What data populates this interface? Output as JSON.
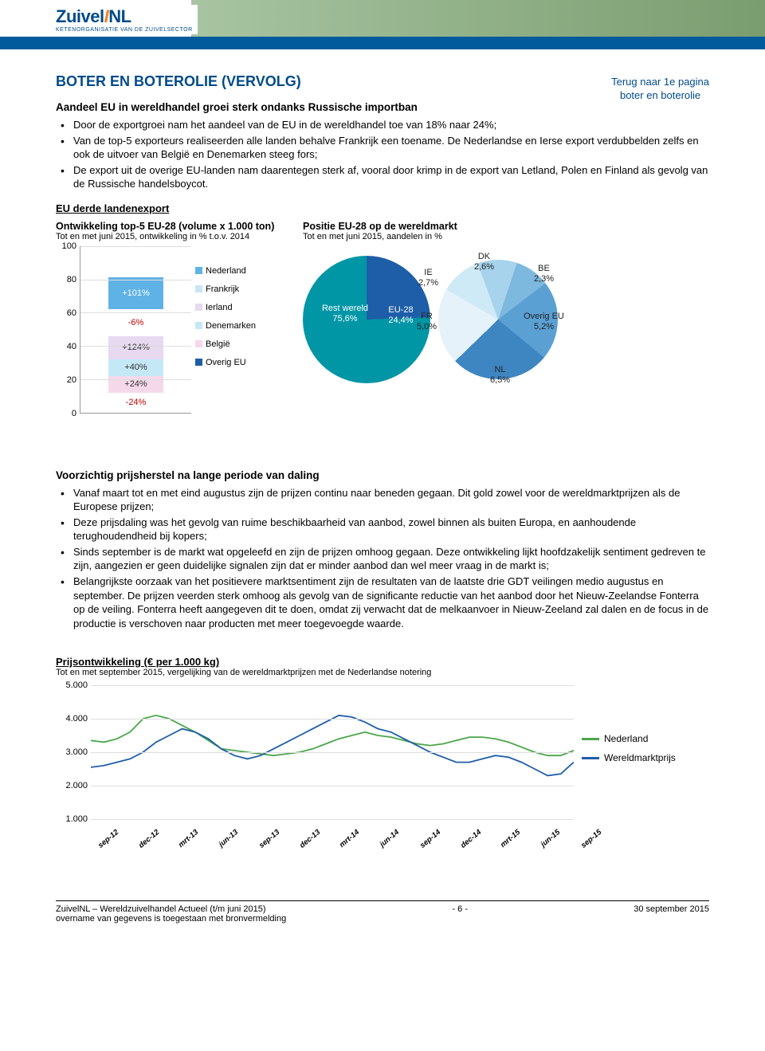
{
  "logo": {
    "main_pre": "Zuivel",
    "main_post": "NL",
    "sub": "KETENORGANISATIE VAN DE ZUIVELSECTOR"
  },
  "title": "BOTER EN BOTEROLIE (VERVOLG)",
  "top_link_line1": "Terug naar 1e pagina",
  "top_link_line2": "boter en boterolie",
  "subhead1": "Aandeel EU in wereldhandel groei sterk ondanks Russische importban",
  "bullets1": [
    "Door de exportgroei nam het aandeel van de EU in de wereldhandel toe van 18% naar 24%;",
    "Van de top-5 exporteurs realiseerden alle landen behalve Frankrijk een toename. De Nederlandse en Ierse export verdubbelden zelfs en ook de uitvoer van België en Denemarken steeg fors;",
    "De export uit de overige EU-landen nam daarentegen sterk af, vooral door krimp in de export van Letland, Polen en Finland als gevolg van de Russische handelsboycot."
  ],
  "subhead2": "EU derde landenexport",
  "bar_chart": {
    "title": "Ontwikkeling top-5 EU-28 (volume x 1.000 ton)",
    "sub": "Tot en met juni 2015, ontwikkeling in % t.o.v. 2014",
    "ymax": 100,
    "ytick_step": 20,
    "segments": [
      {
        "label": "+101%",
        "value": 19,
        "color": "#5fb2e6",
        "name": "Nederland"
      },
      {
        "label": "-6%",
        "value": 16,
        "color": "#c9e4f5",
        "name": "Frankrijk",
        "negcolor": true
      },
      {
        "label": "+124%",
        "value": 14,
        "color": "#e6d9f0",
        "name": "Ierland"
      },
      {
        "label": "+40%",
        "value": 10,
        "color": "#c5e8f7",
        "name": "Denemarken"
      },
      {
        "label": "+24%",
        "value": 10,
        "color": "#f5d9ea",
        "name": "België"
      },
      {
        "label": "-24%",
        "value": 12,
        "color": "transparent",
        "name": "Overig EU",
        "negcolor": true
      }
    ],
    "legend": [
      {
        "label": "Nederland",
        "color": "#5fb2e6"
      },
      {
        "label": "Frankrijk",
        "color": "#c9e4f5"
      },
      {
        "label": "Ierland",
        "color": "#e6d9f0"
      },
      {
        "label": "Denemarken",
        "color": "#c5e8f7"
      },
      {
        "label": "België",
        "color": "#f5d9ea"
      },
      {
        "label": "Overig EU",
        "color": "#1e5ea8"
      }
    ]
  },
  "pie_chart": {
    "title": "Positie EU-28 op de wereldmarkt",
    "sub": "Tot en met juni 2015, aandelen in %",
    "world": {
      "rest_label": "Rest wereld 75,6%",
      "eu_label": "EU-28 24,4%",
      "colors": {
        "rest": "#0096a6",
        "eu": "#1e5ea8"
      },
      "eu_deg": 88
    },
    "eu_breakdown": [
      {
        "code": "IE",
        "value": "2,7%",
        "color": "#cfeaf7"
      },
      {
        "code": "DK",
        "value": "2,6%",
        "color": "#a7d3ec"
      },
      {
        "code": "BE",
        "value": "2,3%",
        "color": "#7db8df"
      },
      {
        "code": "Overig EU",
        "value": "5,2%",
        "color": "#5aa0d3"
      },
      {
        "code": "NL",
        "value": "6,5%",
        "color": "#3e86c2"
      },
      {
        "code": "FR",
        "value": "5,0%",
        "color": "#e6f2fa"
      }
    ]
  },
  "subhead3": "Voorzichtig prijsherstel na lange periode van daling",
  "bullets2": [
    "Vanaf maart tot en met eind augustus zijn de prijzen continu naar beneden gegaan. Dit gold zowel voor de wereldmarktprijzen als de Europese prijzen;",
    "Deze prijsdaling was het gevolg van ruime beschikbaarheid van aanbod, zowel binnen als buiten Europa, en aanhoudende terughoudendheid bij kopers;",
    "Sinds september is de markt wat opgeleefd en zijn de prijzen omhoog gegaan. Deze ontwikkeling lijkt hoofdzakelijk sentiment gedreven te zijn, aangezien er geen duidelijke signalen zijn dat er minder aanbod dan wel meer vraag in de markt is;",
    "Belangrijkste oorzaak van het positievere marktsentiment zijn de resultaten van de laatste drie GDT veilingen medio augustus en september. De prijzen veerden sterk omhoog als gevolg van de significante reductie van het aanbod door het Nieuw-Zeelandse Fonterra op de veiling. Fonterra heeft aangegeven dit te doen, omdat zij verwacht dat de melkaanvoer in Nieuw-Zeeland zal dalen en de focus in de productie is verschoven naar producten met meer toegevoegde waarde."
  ],
  "line_chart": {
    "title": "Prijsontwikkeling (€ per 1.000 kg)",
    "sub": "Tot en met september 2015, vergelijking van de wereldmarktprijzen met de Nederlandse notering",
    "ymin": 1000,
    "ymax": 5000,
    "ytick_step": 1000,
    "xticks": [
      "sep-12",
      "dec-12",
      "mrt-13",
      "jun-13",
      "sep-13",
      "dec-13",
      "mrt-14",
      "jun-14",
      "sep-14",
      "dec-14",
      "mrt-15",
      "jun-15",
      "sep-15"
    ],
    "series": [
      {
        "name": "Nederland",
        "color": "#4aa64a",
        "points": [
          3350,
          3300,
          3400,
          3600,
          4000,
          4100,
          4000,
          3800,
          3600,
          3350,
          3100,
          3050,
          3000,
          2950,
          2900,
          2950,
          3000,
          3100,
          3250,
          3400,
          3500,
          3600,
          3500,
          3450,
          3350,
          3250,
          3200,
          3250,
          3350,
          3450,
          3450,
          3400,
          3300,
          3150,
          3000,
          2900,
          2900,
          3050
        ]
      },
      {
        "name": "Wereldmarktprijs",
        "color": "#1e5ea8",
        "points": [
          2550,
          2600,
          2700,
          2800,
          3000,
          3300,
          3500,
          3700,
          3600,
          3400,
          3100,
          2900,
          2800,
          2900,
          3100,
          3300,
          3500,
          3700,
          3900,
          4100,
          4050,
          3900,
          3700,
          3600,
          3400,
          3200,
          3000,
          2850,
          2700,
          2700,
          2800,
          2900,
          2850,
          2700,
          2500,
          2300,
          2350,
          2700
        ]
      }
    ],
    "legend": [
      {
        "label": "Nederland",
        "color": "#4aa64a"
      },
      {
        "label": "Wereldmarktprijs",
        "color": "#1e5ea8"
      }
    ]
  },
  "footer": {
    "left1": "ZuivelNL – Wereldzuivelhandel Actueel (t/m juni 2015)",
    "left2": "overname van gegevens is toegestaan met bronvermelding",
    "page": "- 6 -",
    "date": "30 september 2015"
  }
}
